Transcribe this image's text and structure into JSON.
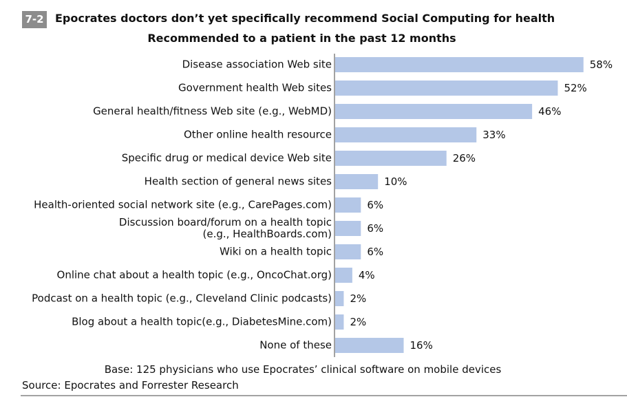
{
  "chart_data": {
    "type": "barh",
    "figure_label": "7-2",
    "title": "Epocrates doctors don’t yet specifically recommend Social Computing for health",
    "subtitle": "Recommended to a patient in the past 12 months",
    "categories": [
      "Disease association Web site",
      "Government health Web sites",
      "General health/fitness Web site (e.g., WebMD)",
      "Other online health resource",
      "Specific drug or medical device Web site",
      "Health section of general news sites",
      "Health-oriented social network site (e.g., CarePages.com)",
      "Discussion board/forum on a health topic\n(e.g., HealthBoards.com)",
      "Wiki on a health topic",
      "Online chat about a health topic (e.g., OncoChat.org)",
      "Podcast on a health topic (e.g., Cleveland Clinic podcasts)",
      "Blog about a health topic(e.g., DiabetesMine.com)",
      "None of these"
    ],
    "values": [
      58,
      52,
      46,
      33,
      26,
      10,
      6,
      6,
      6,
      4,
      2,
      2,
      16
    ],
    "value_labels": [
      "58%",
      "52%",
      "46%",
      "33%",
      "26%",
      "10%",
      "6%",
      "6%",
      "6%",
      "4%",
      "2%",
      "2%",
      "16%"
    ],
    "color": "#b4c7e7",
    "base_note": "Base: 125 physicians who use Epocrates’ clinical software on mobile devices",
    "source": "Source: Epocrates and Forrester Research"
  }
}
